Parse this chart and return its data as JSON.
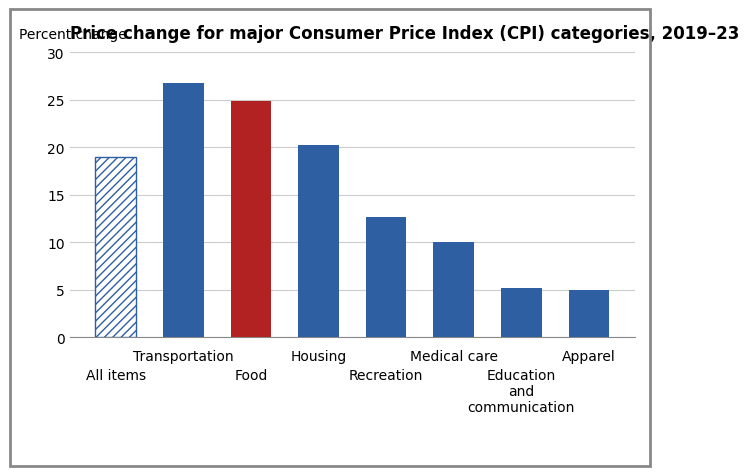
{
  "title": "Price change for major Consumer Price Index (CPI) categories, 2019–23",
  "ylabel": "Percent change",
  "categories": [
    "All items",
    "Transportation",
    "Food",
    "Housing",
    "Recreation",
    "Medical care",
    "Education\nand\ncommunication",
    "Apparel"
  ],
  "values": [
    19.0,
    26.8,
    24.9,
    20.2,
    12.7,
    10.0,
    5.2,
    5.0
  ],
  "bar_colors": [
    "hatched_blue",
    "#2e5fa3",
    "#b22222",
    "#2e5fa3",
    "#2e5fa3",
    "#2e5fa3",
    "#2e5fa3",
    "#2e5fa3"
  ],
  "hatch_color": "#2e5fa3",
  "ylim": [
    0,
    30
  ],
  "yticks": [
    0,
    5,
    10,
    15,
    20,
    25,
    30
  ],
  "background_color": "#ffffff",
  "grid_color": "#cccccc",
  "title_fontsize": 12,
  "label_fontsize": 10,
  "tick_fontsize": 10
}
